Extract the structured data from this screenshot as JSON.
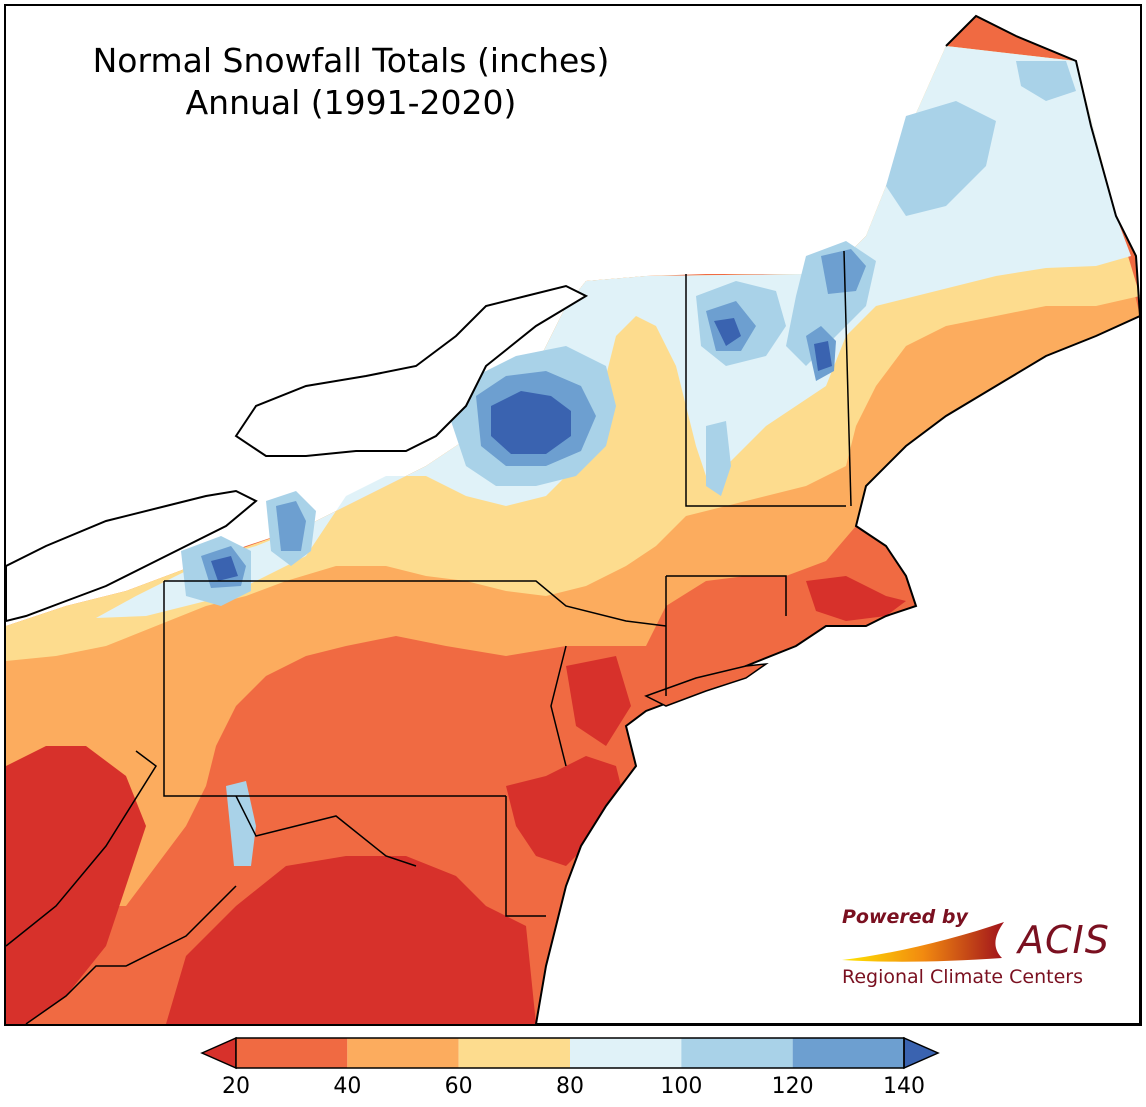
{
  "map": {
    "title_line1": "Normal Snowfall Totals (inches)",
    "title_line2": "Annual (1991-2020)",
    "region": "Northeast United States",
    "variable": "Normal annual snowfall",
    "units": "inches"
  },
  "legend": {
    "ticks": [
      "20",
      "40",
      "60",
      "80",
      "100",
      "120",
      "140"
    ],
    "bins": [
      {
        "range": "<20",
        "color": "#d7312b"
      },
      {
        "range": "20-40",
        "color": "#f06a42"
      },
      {
        "range": "40-60",
        "color": "#fcac5e"
      },
      {
        "range": "60-80",
        "color": "#fddc8e"
      },
      {
        "range": "80-100",
        "color": "#e0f2f8"
      },
      {
        "range": "100-120",
        "color": "#a9d2e8"
      },
      {
        "range": "120-140",
        "color": "#6d9fd0"
      },
      {
        "range": ">140",
        "color": "#3a63b0"
      }
    ],
    "extends": "both"
  },
  "logo": {
    "powered_by": "Powered by",
    "brand": "ACIS",
    "org": "Regional Climate Centers",
    "color": "#7a1020"
  }
}
